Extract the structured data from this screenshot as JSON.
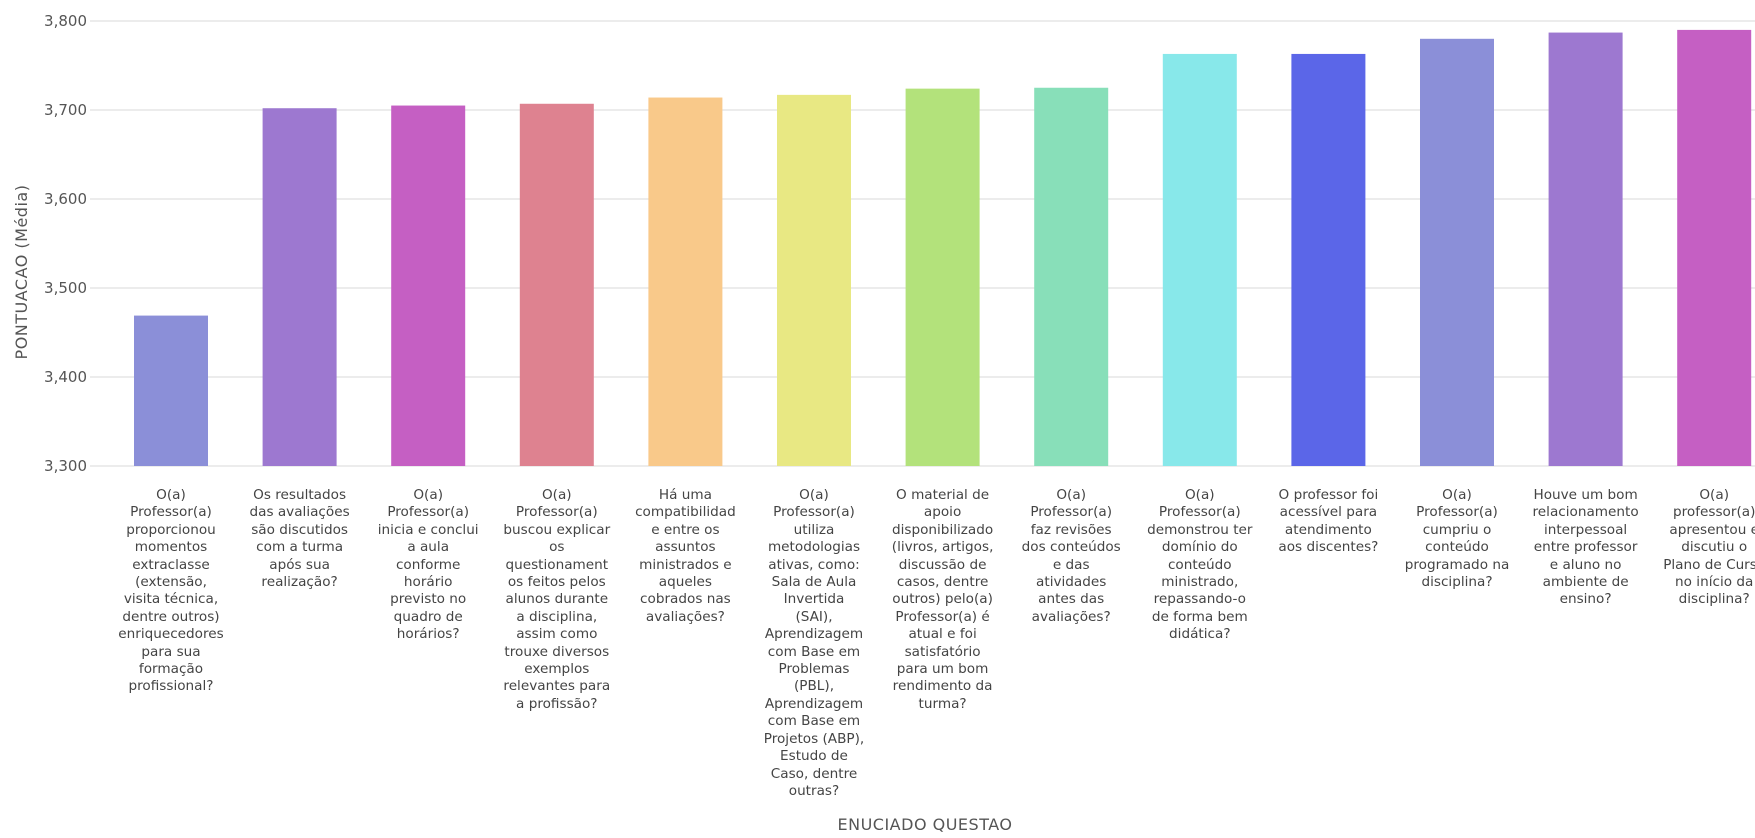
{
  "chart_data": {
    "type": "bar",
    "xlabel": "ENUCIADO QUESTAO",
    "ylabel": "PONTUACAO (Média)",
    "ylim": [
      3300,
      3800
    ],
    "yticks": [
      3300,
      3400,
      3500,
      3600,
      3700,
      3800
    ],
    "ytick_labels": [
      "3,300",
      "3,400",
      "3,500",
      "3,600",
      "3,700",
      "3,800"
    ],
    "grid": true,
    "categories": [
      "O(a) Professor(a) proporcionou momentos extraclasse (extensão, visita técnica, dentre outros) enriquecedores para sua formação profissional?",
      "Os resultados das avaliações são discutidos com a turma após sua realização?",
      "O(a) Professor(a) inicia e conclui a aula conforme horário previsto no quadro de horários?",
      "O(a) Professor(a) buscou explicar os questionamentos feitos pelos alunos durante a disciplina, assim como trouxe diversos exemplos relevantes para a profissão?",
      "Há uma compatibilidade entre os assuntos ministrados e aqueles cobrados nas avaliações?",
      "O(a) Professor(a) utiliza metodologias ativas, como: Sala de Aula Invertida (SAI), Aprendizagem com Base em Problemas (PBL), Aprendizagem com Base em Projetos (ABP), Estudo de Caso, dentre outras?",
      "O material de apoio disponibilizado (livros, artigos, discussão de casos, dentre outros) pelo(a) Professor(a) é atual e foi satisfatório para um bom rendimento da turma?",
      "O(a) Professor(a) faz revisões dos conteúdos e das atividades antes das avaliações?",
      "O(a) Professor(a) demonstrou ter domínio do conteúdo ministrado, repassando-o de forma bem didática?",
      "O professor foi acessível para atendimento aos discentes?",
      "O(a) Professor(a) cumpriu o conteúdo programado na disciplina?",
      "Houve um bom relacionamento interpessoal entre professor e aluno no ambiente de ensino?",
      "O(a) professor(a) apresentou e discutiu o Plano de Curso no início da disciplina?"
    ],
    "category_lines": [
      [
        "O(a)",
        "Professor(a)",
        "proporcionou",
        "momentos",
        "extraclasse",
        "(extensão,",
        "visita técnica,",
        "dentre outros)",
        "enriquecedores",
        "para sua",
        "formação",
        "profissional?"
      ],
      [
        "Os resultados",
        "das avaliações",
        "são discutidos",
        "com a turma",
        "após sua",
        "realização?"
      ],
      [
        "O(a)",
        "Professor(a)",
        "inicia e conclui",
        "a aula",
        "conforme",
        "horário",
        "previsto no",
        "quadro de",
        "horários?"
      ],
      [
        "O(a)",
        "Professor(a)",
        "buscou explicar",
        "os",
        "questionament",
        "os feitos pelos",
        "alunos durante",
        "a disciplina,",
        "assim como",
        "trouxe diversos",
        "exemplos",
        "relevantes para",
        "a profissão?"
      ],
      [
        "Há uma",
        "compatibilidad",
        "e entre os",
        "assuntos",
        "ministrados e",
        "aqueles",
        "cobrados nas",
        "avaliações?"
      ],
      [
        "O(a)",
        "Professor(a)",
        "utiliza",
        "metodologias",
        "ativas, como:",
        "Sala de Aula",
        "Invertida",
        "(SAI),",
        "Aprendizagem",
        "com Base em",
        "Problemas",
        "(PBL),",
        "Aprendizagem",
        "com Base em",
        "Projetos (ABP),",
        "Estudo de",
        "Caso, dentre",
        "outras?"
      ],
      [
        "O material de",
        "apoio",
        "disponibilizado",
        "(livros, artigos,",
        "discussão de",
        "casos, dentre",
        "outros) pelo(a)",
        "Professor(a) é",
        "atual e foi",
        "satisfatório",
        "para um bom",
        "rendimento da",
        "turma?"
      ],
      [
        "O(a)",
        "Professor(a)",
        "faz revisões",
        "dos conteúdos",
        "e das",
        "atividades",
        "antes das",
        "avaliações?"
      ],
      [
        "O(a)",
        "Professor(a)",
        "demonstrou ter",
        "domínio do",
        "conteúdo",
        "ministrado,",
        "repassando-o",
        "de forma bem",
        "didática?"
      ],
      [
        "O professor foi",
        "acessível para",
        "atendimento",
        "aos discentes?"
      ],
      [
        "O(a)",
        "Professor(a)",
        "cumpriu o",
        "conteúdo",
        "programado na",
        "disciplina?"
      ],
      [
        "Houve um bom",
        "relacionamento",
        "interpessoal",
        "entre professor",
        "e aluno no",
        "ambiente de",
        "ensino?"
      ],
      [
        "O(a)",
        "professor(a)",
        "apresentou e",
        "discutiu o",
        "Plano de Curso",
        "no início da",
        "disciplina?"
      ]
    ],
    "values": [
      3.469,
      3.702,
      3.705,
      3.707,
      3.714,
      3.717,
      3.724,
      3.725,
      3.763,
      3.763,
      3.78,
      3.787,
      3.79
    ],
    "value_scale_note": "",
    "colors": [
      "#8b8fd8",
      "#9d78d0",
      "#c55fc3",
      "#de8290",
      "#f9c98a",
      "#e8e883",
      "#b3e27b",
      "#88dfb9",
      "#88e8ea",
      "#5b66e8",
      "#8b8fd8",
      "#9d78d0",
      "#c55fc3"
    ]
  }
}
